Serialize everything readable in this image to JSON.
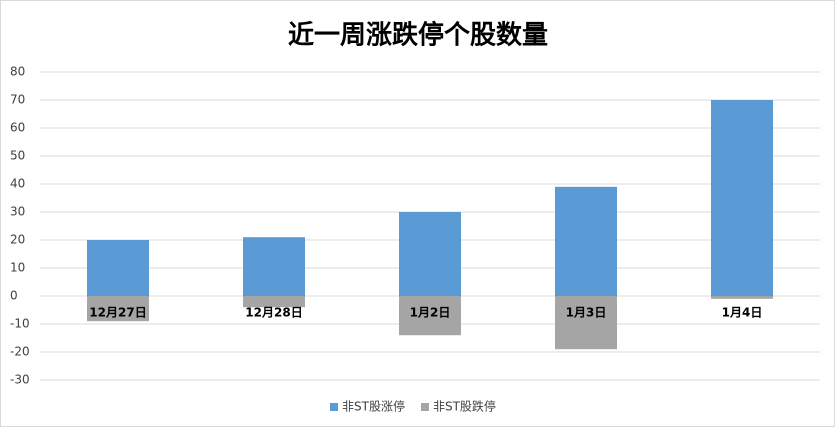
{
  "chart_data": {
    "type": "bar",
    "title": "近一周涨跌停个股数量",
    "categories": [
      "12月27日",
      "12月28日",
      "1月2日",
      "1月3日",
      "1月4日"
    ],
    "series": [
      {
        "name": "非ST股涨停",
        "color": "#5b9bd5",
        "values": [
          20,
          21,
          30,
          39,
          70
        ]
      },
      {
        "name": "非ST股跌停",
        "color": "#a5a5a5",
        "values": [
          -9,
          -4,
          -14,
          -19,
          -1
        ]
      }
    ],
    "ylim": [
      -30,
      80
    ],
    "yticks": [
      -30,
      -20,
      -10,
      0,
      10,
      20,
      30,
      40,
      50,
      60,
      70,
      80
    ],
    "grid": true,
    "legend": "bottom"
  }
}
